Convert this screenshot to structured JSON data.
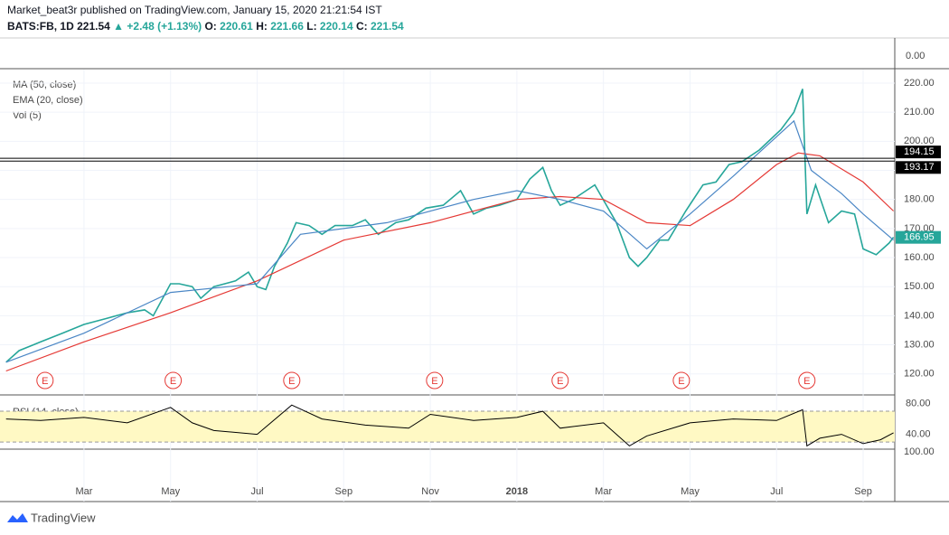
{
  "header": {
    "publisher": "Market_beat3r published on TradingView.com, January 15, 2020 21:21:54 IST",
    "symbol": "BATS:FB, 1D",
    "last": "221.54",
    "change": "▲ +2.48 (+1.13%)",
    "ohlc": [
      {
        "key": "O:",
        "value": "220.61"
      },
      {
        "key": "H:",
        "value": "221.66"
      },
      {
        "key": "L:",
        "value": "220.14"
      },
      {
        "key": "C:",
        "value": "221.54"
      }
    ]
  },
  "indicators": [
    "MA (50, close)",
    "EMA (20, close)",
    "Vol (5)"
  ],
  "rsi_label": "RSI (14, close)",
  "extra_axis_labels": {
    "volume_top": "0.00",
    "rsi_bottom": "100.00"
  },
  "footer": "TradingView",
  "chart_data": {
    "type": "line",
    "xlim": [
      0.06,
      20.73
    ],
    "xticks": [
      {
        "value": 2,
        "label": "Mar"
      },
      {
        "value": 4,
        "label": "May"
      },
      {
        "value": 6,
        "label": "Jul"
      },
      {
        "value": 8,
        "label": "Sep"
      },
      {
        "value": 10,
        "label": "Nov"
      },
      {
        "value": 12,
        "label": "2018"
      },
      {
        "value": 14,
        "label": "Mar"
      },
      {
        "value": 16,
        "label": "May"
      },
      {
        "value": 18,
        "label": "Jul"
      },
      {
        "value": 20,
        "label": "Sep"
      }
    ],
    "ylim": [
      113.07,
      224.66
    ],
    "yticks": [
      {
        "value": 120,
        "label": "120.00"
      },
      {
        "value": 130,
        "label": "130.00"
      },
      {
        "value": 140,
        "label": "140.00"
      },
      {
        "value": 150,
        "label": "150.00"
      },
      {
        "value": 160,
        "label": "160.00"
      },
      {
        "value": 170,
        "label": "170.00"
      },
      {
        "value": 180,
        "label": "180.00"
      },
      {
        "value": 190,
        "label": "190.00"
      },
      {
        "value": 200,
        "label": "200.00"
      },
      {
        "value": 210,
        "label": "210.00"
      },
      {
        "value": 220,
        "label": "220.00"
      }
    ],
    "levels": [
      194.15,
      193.17
    ],
    "last_price": 166.95,
    "earnings_x": [
      1.1,
      4.06,
      6.8,
      10.1,
      13.0,
      15.8,
      18.7
    ],
    "earnings_label": "E",
    "series": [
      {
        "name": "FB",
        "color": "#26a69a",
        "x": [
          0.2,
          0.5,
          1.0,
          1.5,
          2.0,
          2.5,
          3.0,
          3.4,
          3.6,
          4.0,
          4.2,
          4.5,
          4.7,
          5.0,
          5.5,
          5.8,
          6.0,
          6.2,
          6.4,
          6.7,
          6.9,
          7.2,
          7.5,
          7.8,
          8.2,
          8.5,
          8.8,
          9.2,
          9.5,
          9.9,
          10.3,
          10.7,
          11.0,
          11.3,
          11.6,
          12.0,
          12.3,
          12.6,
          12.8,
          13.0,
          13.3,
          13.6,
          13.8,
          14.3,
          14.6,
          14.8,
          15.0,
          15.3,
          15.5,
          15.9,
          16.3,
          16.6,
          16.9,
          17.2,
          17.6,
          18.1,
          18.4,
          18.6,
          18.7,
          18.9,
          19.2,
          19.5,
          19.8,
          20.0,
          20.3,
          20.6,
          20.7
        ],
        "values": [
          124,
          128,
          131,
          134,
          137,
          139,
          141,
          142,
          140,
          151,
          151,
          150,
          146,
          150,
          152,
          155,
          150,
          149,
          157,
          165,
          172,
          171,
          168,
          171,
          171,
          173,
          168,
          172,
          173,
          177,
          178,
          183,
          175,
          177,
          178,
          180,
          187,
          191,
          183,
          178,
          180,
          183,
          185,
          172,
          160,
          157,
          160,
          166,
          166,
          176,
          185,
          186,
          192,
          193,
          197,
          204,
          210,
          218,
          175,
          185,
          172,
          176,
          175,
          163,
          161,
          165,
          167
        ]
      },
      {
        "name": "MA (50, close)",
        "color": "#e53935",
        "x": [
          0.2,
          2,
          4,
          6,
          8,
          10,
          12,
          13,
          14,
          15,
          16,
          17,
          18,
          18.5,
          19,
          20,
          20.7
        ],
        "values": [
          121,
          131,
          141,
          152,
          166,
          172,
          180,
          181,
          180,
          172,
          171,
          180,
          192,
          196,
          195,
          186,
          176
        ]
      },
      {
        "name": "EMA (20, close)",
        "color": "#4a86c5",
        "x": [
          0.2,
          2,
          4,
          6,
          7,
          9,
          11,
          12,
          13,
          14,
          15,
          16,
          17,
          18.4,
          18.8,
          19.5,
          20,
          20.7
        ],
        "values": [
          124,
          134,
          148,
          151,
          168,
          172,
          180,
          183,
          180,
          176,
          163,
          175,
          188,
          207,
          190,
          182,
          175,
          166
        ]
      }
    ],
    "rsi": {
      "ylim": [
        22,
        90
      ],
      "yticks": [
        {
          "value": 80,
          "label": "80.00"
        },
        {
          "value": 40,
          "label": "40.00"
        }
      ],
      "band": [
        70,
        30
      ],
      "color": "#000000",
      "x": [
        0.2,
        1,
        2,
        3,
        4,
        4.5,
        5,
        6,
        6.8,
        7.5,
        8.5,
        9.5,
        10,
        11,
        12,
        12.6,
        13,
        14,
        14.6,
        15,
        16,
        17,
        18,
        18.6,
        18.7,
        19,
        19.5,
        20,
        20.4,
        20.7
      ],
      "values": [
        60,
        58,
        62,
        55,
        75,
        55,
        45,
        40,
        78,
        60,
        52,
        48,
        66,
        58,
        62,
        70,
        48,
        55,
        25,
        38,
        55,
        60,
        58,
        72,
        25,
        35,
        40,
        28,
        33,
        42
      ]
    }
  }
}
